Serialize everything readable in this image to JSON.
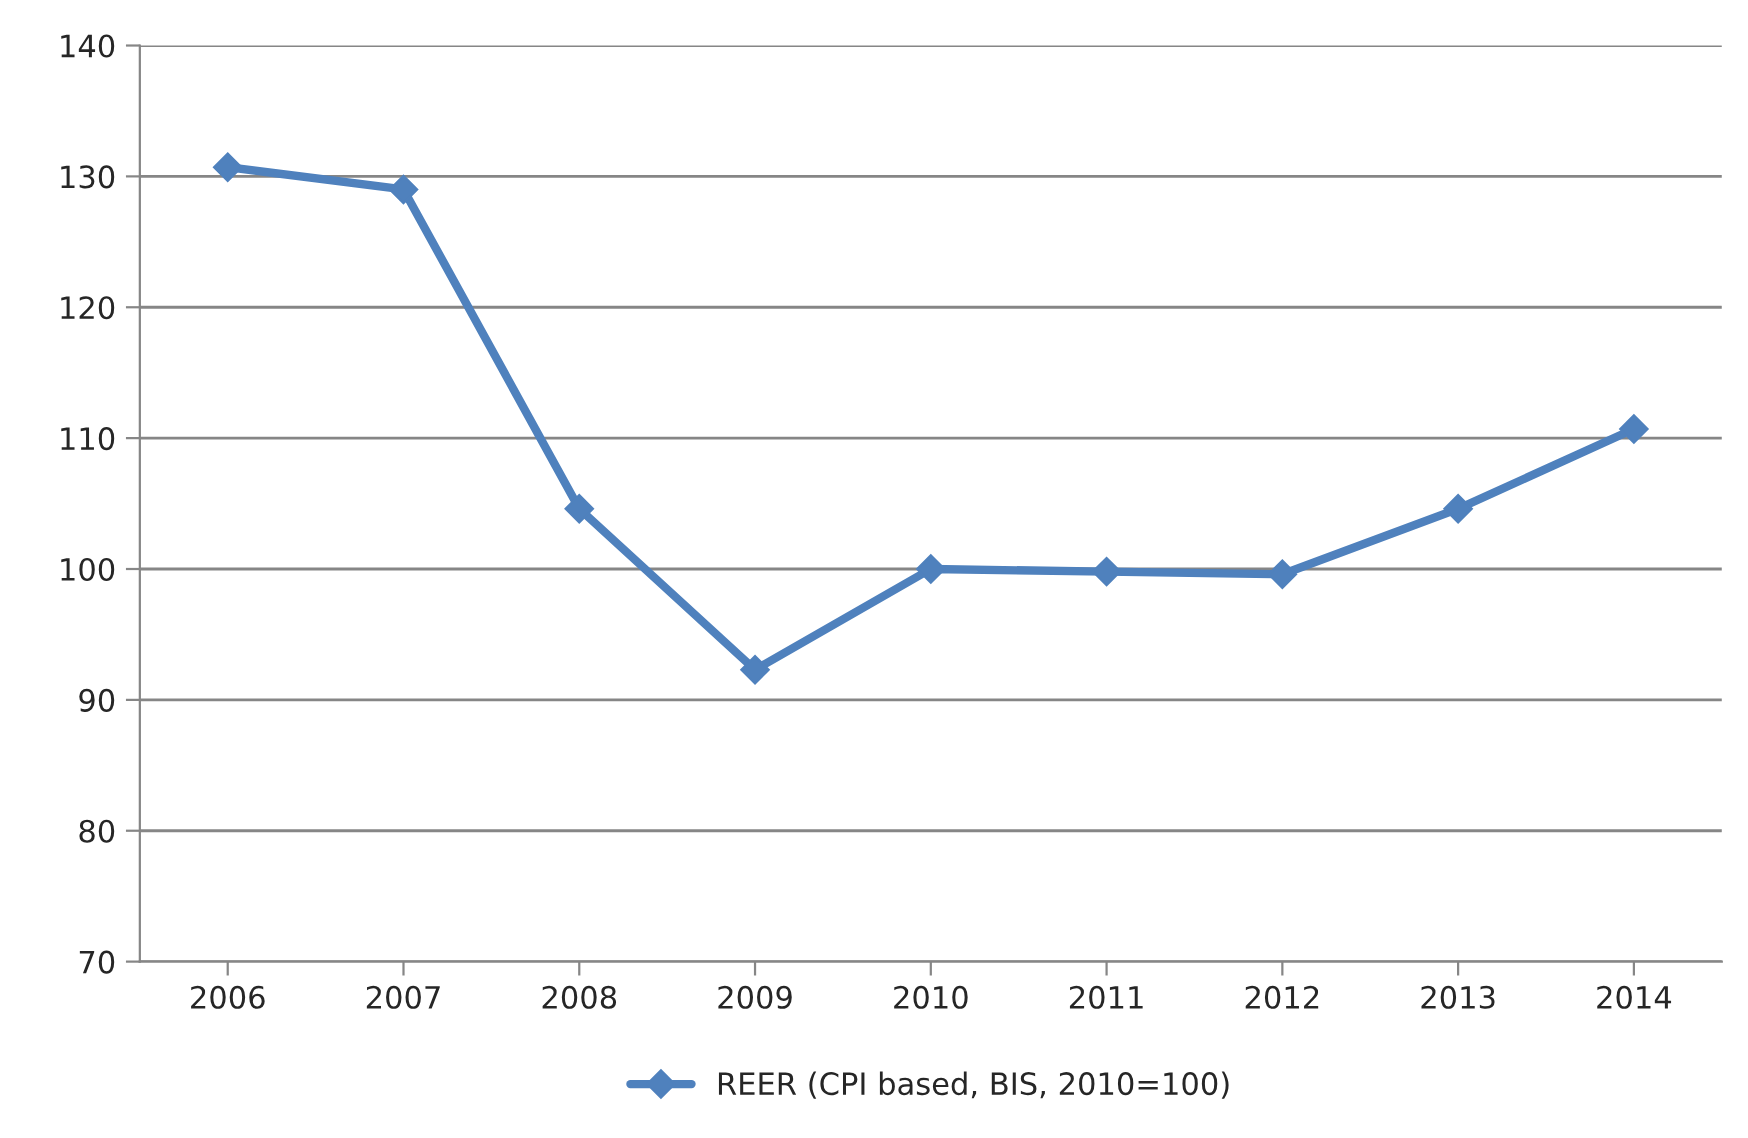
{
  "chart_data": {
    "type": "line",
    "categories": [
      "2006",
      "2007",
      "2008",
      "2009",
      "2010",
      "2011",
      "2012",
      "2013",
      "2014"
    ],
    "series": [
      {
        "name": "REER (CPI based, BIS, 2010=100)",
        "color": "#4f81bd",
        "values": [
          130.7,
          129.0,
          104.6,
          92.3,
          100.0,
          99.8,
          99.6,
          104.6,
          110.7
        ]
      }
    ],
    "ylim": [
      70,
      140
    ],
    "yticks": [
      70,
      80,
      90,
      100,
      110,
      120,
      130,
      140
    ],
    "grid": "y",
    "legend": "bottom",
    "marker": "diamond",
    "line_style": "solid"
  }
}
